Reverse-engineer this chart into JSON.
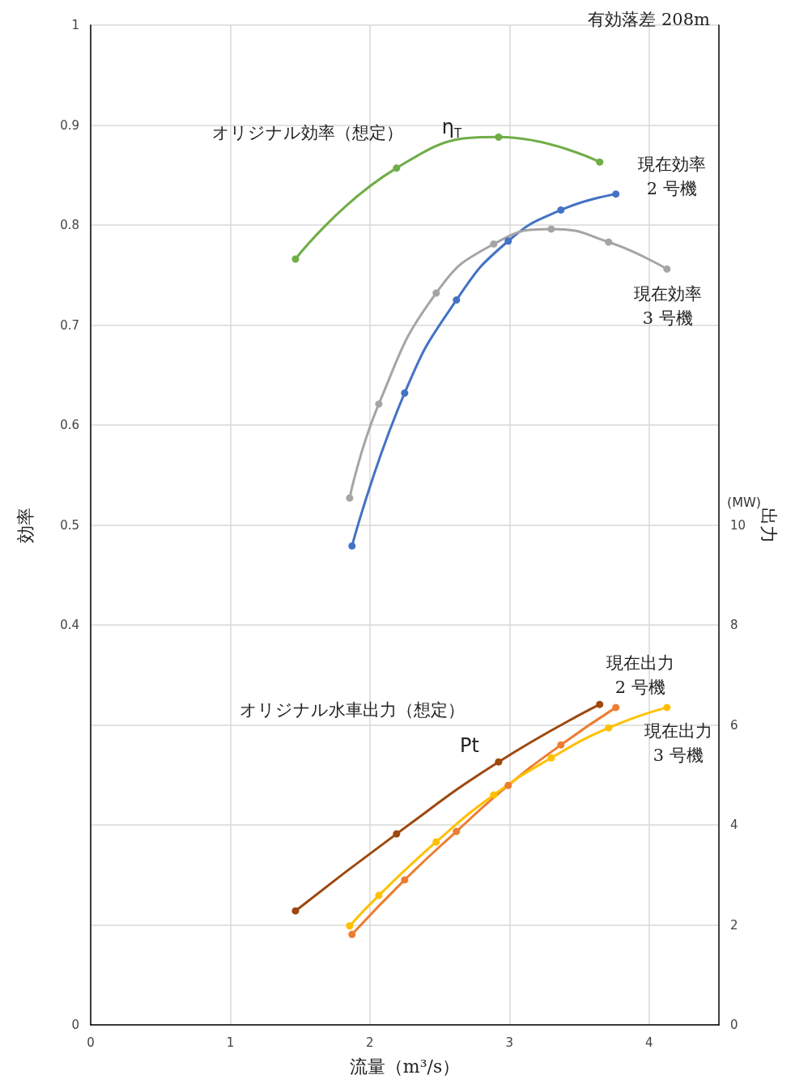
{
  "chart_data": {
    "type": "line",
    "title": "有効落差 208m",
    "xlabel": "流量（m³/s）",
    "ylabel": "効率",
    "y2label": "出力",
    "xlim": [
      0,
      4.5
    ],
    "xticks": [
      0,
      1,
      2,
      3,
      4
    ],
    "ylim": [
      0,
      1
    ],
    "yticks": [
      0,
      {
        "value": 0.1,
        "label": null
      },
      {
        "value": 0.2,
        "label": null
      },
      {
        "value": 0.3,
        "label": null
      },
      0.4,
      0.5,
      0.6,
      0.7,
      0.8,
      0.9,
      1
    ],
    "y2lim": [
      0,
      20
    ],
    "y2ticks": [
      0,
      2,
      4,
      6,
      8,
      10
    ],
    "grid": true,
    "marker": "circle",
    "line_style": "solid",
    "series": [
      {
        "name": "オリジナル効率（想定）",
        "color": "#70ad47",
        "x": [
          1.467,
          2.191,
          2.922,
          3.646
        ],
        "values": [
          0.766,
          0.857,
          0.888,
          0.863
        ]
      },
      {
        "name": "現在効率\n2 号機",
        "color": "#4472c4",
        "x": [
          1.872,
          2.249,
          2.62,
          2.991,
          3.368,
          3.762
        ],
        "values": [
          0.479,
          0.632,
          0.725,
          0.784,
          0.815,
          0.831
        ]
      },
      {
        "name": "現在効率\n3 号機",
        "color": "#a5a5a5",
        "x": [
          1.855,
          2.064,
          2.475,
          2.887,
          3.299,
          3.71,
          4.128
        ],
        "values": [
          0.527,
          0.621,
          0.732,
          0.781,
          0.796,
          0.783,
          0.756
        ]
      },
      {
        "name": "オリジナル水車出力（想定）",
        "color": "#9e480e",
        "axis": "y2",
        "x": [
          1.467,
          2.191,
          2.922,
          3.646
        ],
        "values": [
          2.28,
          3.82,
          5.26,
          6.41
        ]
      },
      {
        "name": "現在出力\n2 号機",
        "color": "#ed7d31",
        "axis": "y2",
        "x": [
          1.872,
          2.249,
          2.62,
          2.991,
          3.368,
          3.762
        ],
        "values": [
          1.81,
          2.9,
          3.87,
          4.79,
          5.6,
          6.35
        ]
      },
      {
        "name": "現在出力\n3 号機",
        "color": "#ffc000",
        "axis": "y2",
        "x": [
          1.855,
          2.064,
          2.475,
          2.887,
          3.299,
          3.71,
          4.128
        ],
        "values": [
          1.98,
          2.59,
          3.66,
          4.6,
          5.34,
          5.94,
          6.35
        ]
      }
    ],
    "annotations": [
      "η$_{T}$",
      "Pt",
      "(MW)"
    ]
  }
}
